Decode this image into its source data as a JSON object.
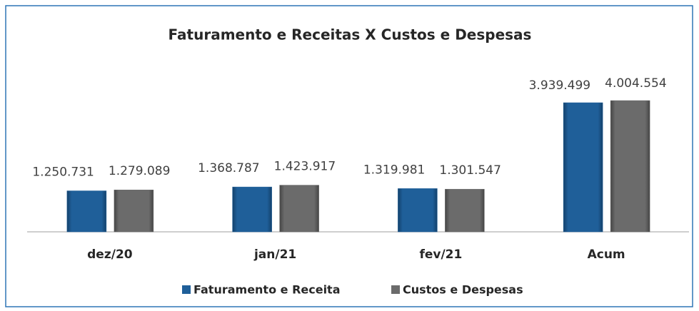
{
  "chart_data": {
    "type": "bar",
    "title": "Faturamento e Receitas X Custos e Despesas",
    "categories": [
      "dez/20",
      "jan/21",
      "fev/21",
      "Acum"
    ],
    "series": [
      {
        "name": "Faturamento e Receita",
        "color": "#1f5f99",
        "values": [
          1250731,
          1368787,
          1319981,
          3939499
        ],
        "value_labels": [
          "1.250.731",
          "1.368.787",
          "1.319.981",
          "3.939.499"
        ]
      },
      {
        "name": "Custos e Despesas",
        "color": "#6b6b6b",
        "values": [
          1279089,
          1423917,
          1301547,
          4004554
        ],
        "value_labels": [
          "1.279.089",
          "1.423.917",
          "1.301.547",
          "4.004.554"
        ]
      }
    ],
    "legend": "bottom"
  }
}
